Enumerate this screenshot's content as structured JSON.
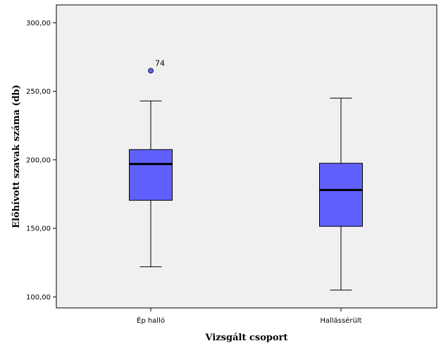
{
  "chart_data": {
    "type": "boxplot",
    "xlabel": "Vizsgált csoport",
    "ylabel": "Előhívott szavak száma (db)",
    "ylim": [
      92,
      313
    ],
    "yticks": [
      100,
      150,
      200,
      250,
      300
    ],
    "ytick_labels": [
      "100,00",
      "150,00",
      "200,00",
      "250,00",
      "300,00"
    ],
    "grid": false,
    "background_color": "#f0f0f0",
    "box_color": "#6060ff",
    "categories": [
      "Ép halló",
      "Hallássérült"
    ],
    "boxes": [
      {
        "category": "Ép halló",
        "min": 122,
        "q1": 170.5,
        "median": 197,
        "q3": 207.5,
        "max": 243,
        "outliers": [
          {
            "value": 265,
            "label": "74"
          }
        ]
      },
      {
        "category": "Hallássérült",
        "min": 105,
        "q1": 151.5,
        "median": 178,
        "q3": 197.5,
        "max": 245,
        "outliers": []
      }
    ]
  }
}
